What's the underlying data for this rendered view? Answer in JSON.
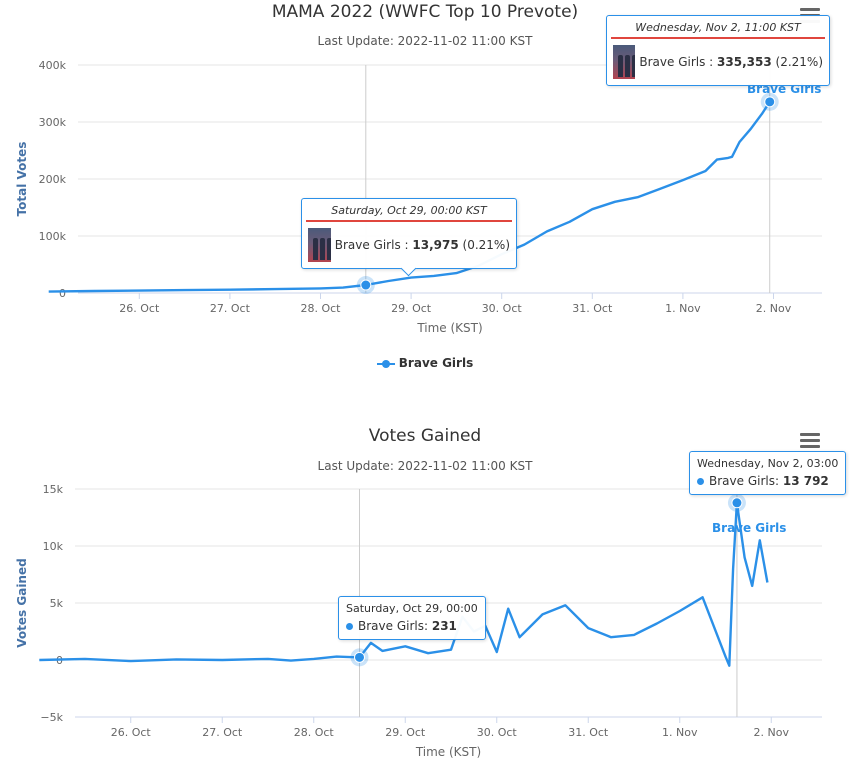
{
  "chart_data": [
    {
      "type": "line",
      "title": "MAMA 2022 (WWFC Top 10 Prevote)",
      "subtitle": "Last Update: 2022-11-02 11:00 KST",
      "xlabel": "Time (KST)",
      "ylabel": "Total Votes",
      "x_ticks": [
        "26. Oct",
        "27. Oct",
        "28. Oct",
        "29. Oct",
        "30. Oct",
        "31. Oct",
        "1. Nov",
        "2. Nov"
      ],
      "y_ticks": [
        "0",
        "100k",
        "200k",
        "300k",
        "400k"
      ],
      "ylim": [
        0,
        400000
      ],
      "grid": true,
      "legend": "bottom-center",
      "legend_label": "Brave Girls",
      "series_label": "Brave Girls",
      "color": "#2b90e8",
      "series": [
        {
          "name": "Brave Girls",
          "points": [
            [
              "2022-10-25T12:00",
              2500
            ],
            [
              "2022-10-26T00:00",
              3500
            ],
            [
              "2022-10-26T12:00",
              4200
            ],
            [
              "2022-10-27T00:00",
              5000
            ],
            [
              "2022-10-27T12:00",
              5800
            ],
            [
              "2022-10-28T00:00",
              6800
            ],
            [
              "2022-10-28T12:00",
              8000
            ],
            [
              "2022-10-28T18:00",
              9500
            ],
            [
              "2022-10-29T00:00",
              13975
            ],
            [
              "2022-10-29T06:00",
              21000
            ],
            [
              "2022-10-29T12:00",
              27000
            ],
            [
              "2022-10-29T18:00",
              30000
            ],
            [
              "2022-10-30T00:00",
              35000
            ],
            [
              "2022-10-30T06:00",
              48000
            ],
            [
              "2022-10-30T12:00",
              68000
            ],
            [
              "2022-10-30T18:00",
              85000
            ],
            [
              "2022-10-31T00:00",
              108000
            ],
            [
              "2022-10-31T06:00",
              125000
            ],
            [
              "2022-10-31T12:00",
              147000
            ],
            [
              "2022-10-31T18:00",
              160000
            ],
            [
              "2022-11-01T00:00",
              168000
            ],
            [
              "2022-11-01T06:00",
              183000
            ],
            [
              "2022-11-01T12:00",
              198000
            ],
            [
              "2022-11-01T18:00",
              214000
            ],
            [
              "2022-11-01T21:00",
              234000
            ],
            [
              "2022-11-02T00:00",
              237000
            ],
            [
              "2022-11-02T01:00",
              239000
            ],
            [
              "2022-11-02T03:00",
              265000
            ],
            [
              "2022-11-02T06:00",
              288000
            ],
            [
              "2022-11-02T09:00",
              315000
            ],
            [
              "2022-11-02T11:00",
              335353
            ]
          ]
        }
      ],
      "tooltips": [
        {
          "date": "Saturday, Oct 29, 00:00 KST",
          "series": "Brave Girls",
          "value": "13,975",
          "pct": "(0.21%)",
          "x": "2022-10-29T00:00",
          "y": 13975
        },
        {
          "date": "Wednesday, Nov 2, 11:00 KST",
          "series": "Brave Girls",
          "value": "335,353",
          "pct": "(2.21%)",
          "x": "2022-11-02T11:00",
          "y": 335353
        }
      ],
      "crosshairs": [
        "2022-10-29T00:00",
        "2022-11-02T11:00"
      ]
    },
    {
      "type": "line",
      "title": "Votes Gained",
      "subtitle": "Last Update: 2022-11-02 11:00 KST",
      "xlabel": "Time (KST)",
      "ylabel": "Votes Gained",
      "x_ticks": [
        "26. Oct",
        "27. Oct",
        "28. Oct",
        "29. Oct",
        "30. Oct",
        "31. Oct",
        "1. Nov",
        "2. Nov"
      ],
      "y_ticks": [
        "−5k",
        "0",
        "5k",
        "10k",
        "15k"
      ],
      "ylim": [
        -5000,
        15000
      ],
      "grid": true,
      "series_label": "Brave Girls",
      "color": "#2b90e8",
      "series": [
        {
          "name": "Brave Girls",
          "points": [
            [
              "2022-10-25T12:00",
              0
            ],
            [
              "2022-10-26T00:00",
              100
            ],
            [
              "2022-10-26T12:00",
              -100
            ],
            [
              "2022-10-27T00:00",
              50
            ],
            [
              "2022-10-27T12:00",
              0
            ],
            [
              "2022-10-28T00:00",
              100
            ],
            [
              "2022-10-28T06:00",
              -50
            ],
            [
              "2022-10-28T12:00",
              100
            ],
            [
              "2022-10-28T18:00",
              300
            ],
            [
              "2022-10-29T00:00",
              231
            ],
            [
              "2022-10-29T03:00",
              1500
            ],
            [
              "2022-10-29T06:00",
              800
            ],
            [
              "2022-10-29T12:00",
              1200
            ],
            [
              "2022-10-29T18:00",
              600
            ],
            [
              "2022-10-30T00:00",
              900
            ],
            [
              "2022-10-30T03:00",
              3800
            ],
            [
              "2022-10-30T06:00",
              2500
            ],
            [
              "2022-10-30T09:00",
              3000
            ],
            [
              "2022-10-30T12:00",
              700
            ],
            [
              "2022-10-30T15:00",
              4500
            ],
            [
              "2022-10-30T18:00",
              2000
            ],
            [
              "2022-10-31T00:00",
              4000
            ],
            [
              "2022-10-31T06:00",
              4800
            ],
            [
              "2022-10-31T12:00",
              2800
            ],
            [
              "2022-10-31T18:00",
              2000
            ],
            [
              "2022-11-01T00:00",
              2200
            ],
            [
              "2022-11-01T06:00",
              3200
            ],
            [
              "2022-11-01T12:00",
              4300
            ],
            [
              "2022-11-01T18:00",
              5500
            ],
            [
              "2022-11-02T00:00",
              300
            ],
            [
              "2022-11-02T01:00",
              -500
            ],
            [
              "2022-11-02T02:00",
              8000
            ],
            [
              "2022-11-02T03:00",
              13792
            ],
            [
              "2022-11-02T05:00",
              9000
            ],
            [
              "2022-11-02T07:00",
              6500
            ],
            [
              "2022-11-02T09:00",
              10500
            ],
            [
              "2022-11-02T11:00",
              6800
            ]
          ]
        }
      ],
      "tooltips": [
        {
          "date": "Saturday, Oct 29, 00:00",
          "series": "Brave Girls",
          "value": "231",
          "x": "2022-10-29T00:00",
          "y": 231
        },
        {
          "date": "Wednesday, Nov 2, 03:00",
          "series": "Brave Girls",
          "value": "13 792",
          "x": "2022-11-02T03:00",
          "y": 13792
        }
      ],
      "crosshairs": [
        "2022-10-29T00:00",
        "2022-11-02T03:00"
      ]
    }
  ]
}
